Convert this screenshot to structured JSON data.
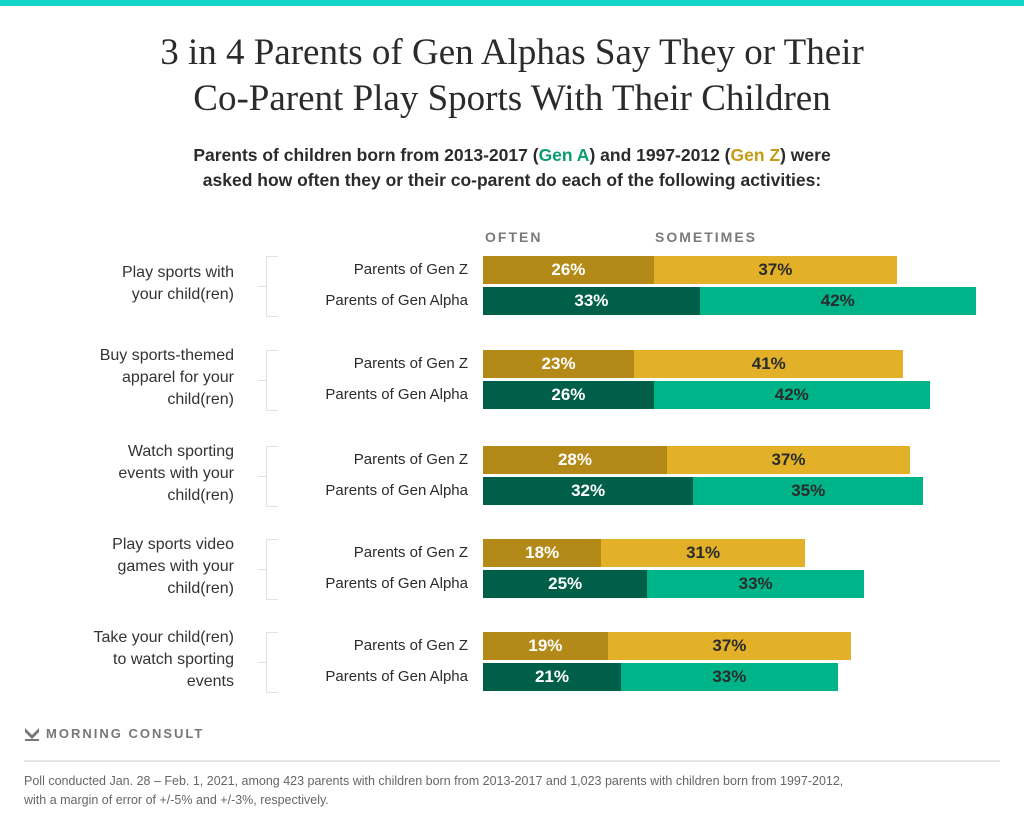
{
  "title_lines": [
    "3 in 4 Parents of Gen Alphas Say They or Their",
    "Co-Parent Play Sports With Their Children"
  ],
  "subtitle": {
    "part1": "Parents of children born from 2013-2017 (",
    "gen_a": "Gen A",
    "part2": ") and 1997-2012 (",
    "gen_z": "Gen Z",
    "part3": ") were",
    "line2": "asked how often they or their co-parent do each of the following activities:"
  },
  "colors": {
    "often_gen_z": "#b38918",
    "sometimes_gen_z": "#e2b128",
    "often_gen_alpha": "#005f48",
    "sometimes_gen_alpha": "#00b48a",
    "accent_bar": "#13d6c8"
  },
  "chart_data": {
    "type": "bar",
    "orientation": "horizontal",
    "stacked": true,
    "title": "3 in 4 Parents of Gen Alphas Say They or Their Co-Parent Play Sports With Their Children",
    "legend": [
      "OFTEN",
      "SOMETIMES"
    ],
    "legend_placement": "top",
    "xlim": [
      0,
      100
    ],
    "unit": "%",
    "groups": [
      "Parents of Gen Z",
      "Parents of Gen Alpha"
    ],
    "categories": [
      {
        "label": "Play sports with your child(ren)",
        "label_lines": [
          "Play sports with",
          "your child(ren)"
        ],
        "rows": [
          {
            "group": "Parents of Gen Z",
            "often": 26,
            "sometimes": 37
          },
          {
            "group": "Parents of Gen Alpha",
            "often": 33,
            "sometimes": 42
          }
        ]
      },
      {
        "label": "Buy sports-themed apparel for your child(ren)",
        "label_lines": [
          "Buy sports-themed",
          "apparel for your",
          "child(ren)"
        ],
        "rows": [
          {
            "group": "Parents of Gen Z",
            "often": 23,
            "sometimes": 41
          },
          {
            "group": "Parents of Gen Alpha",
            "often": 26,
            "sometimes": 42
          }
        ]
      },
      {
        "label": "Watch sporting events with your child(ren)",
        "label_lines": [
          "Watch sporting",
          "events with your",
          "child(ren)"
        ],
        "rows": [
          {
            "group": "Parents of Gen Z",
            "often": 28,
            "sometimes": 37
          },
          {
            "group": "Parents of Gen Alpha",
            "often": 32,
            "sometimes": 35
          }
        ]
      },
      {
        "label": "Play sports video games with your child(ren)",
        "label_lines": [
          "Play sports video",
          "games with your",
          "child(ren)"
        ],
        "rows": [
          {
            "group": "Parents of Gen Z",
            "often": 18,
            "sometimes": 31
          },
          {
            "group": "Parents of Gen Alpha",
            "often": 25,
            "sometimes": 33
          }
        ]
      },
      {
        "label": "Take your child(ren) to watch sporting events",
        "label_lines": [
          "Take your child(ren)",
          "to watch sporting",
          "events"
        ],
        "rows": [
          {
            "group": "Parents of Gen Z",
            "often": 19,
            "sometimes": 37
          },
          {
            "group": "Parents of Gen Alpha",
            "often": 21,
            "sometimes": 33
          }
        ]
      }
    ]
  },
  "logo_text": "MORNING CONSULT",
  "footnote_lines": [
    "Poll conducted Jan. 28 – Feb. 1, 2021, among 423 parents with children born from 2013-2017 and 1,023 parents with children born from 1997-2012,",
    "with a margin of error of +/-5% and +/-3%, respectively."
  ]
}
